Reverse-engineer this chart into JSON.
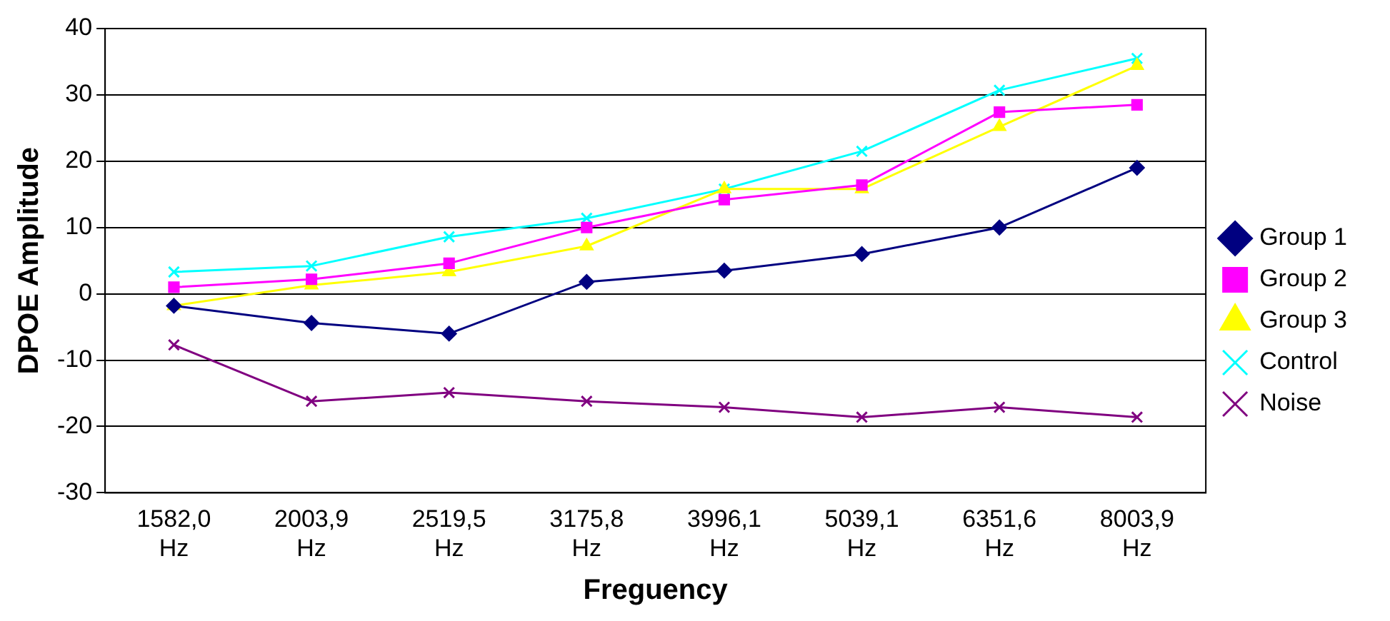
{
  "chart_data": {
    "type": "line",
    "xlabel": "Freguency",
    "ylabel": "DPOE Amplitude",
    "categories": [
      "1582,0 Hz",
      "2003,9 Hz",
      "2519,5 Hz",
      "3175,8 Hz",
      "3996,1 Hz",
      "5039,1 Hz",
      "6351,6 Hz",
      "8003,9 Hz"
    ],
    "series": [
      {
        "name": "Group 1",
        "color": "#000080",
        "marker": "diamond",
        "values": [
          -1.8,
          -4.4,
          -6,
          1.8,
          3.5,
          6,
          10,
          19
        ]
      },
      {
        "name": "Group 2",
        "color": "#ff00ff",
        "marker": "square",
        "values": [
          1,
          2.2,
          4.6,
          10,
          14.2,
          16.4,
          27.4,
          28.5
        ]
      },
      {
        "name": "Group 3",
        "color": "#ffff00",
        "marker": "triangle",
        "values": [
          -1.8,
          1.3,
          3.3,
          7.2,
          15.8,
          15.8,
          25.2,
          34.4
        ]
      },
      {
        "name": "Control",
        "color": "#00ffff",
        "marker": "cross",
        "values": [
          3.3,
          4.2,
          8.6,
          11.4,
          15.8,
          21.5,
          30.7,
          35.5
        ]
      },
      {
        "name": "Noise",
        "color": "#800080",
        "marker": "cross",
        "values": [
          -7.7,
          -16.2,
          -14.9,
          -16.2,
          -17.1,
          -18.6,
          -17.1,
          -18.6
        ]
      }
    ],
    "ylim": [
      -30,
      40
    ],
    "yticks": [
      -30,
      -20,
      -10,
      0,
      10,
      20,
      30,
      40
    ],
    "grid": "y",
    "legend": "right"
  }
}
